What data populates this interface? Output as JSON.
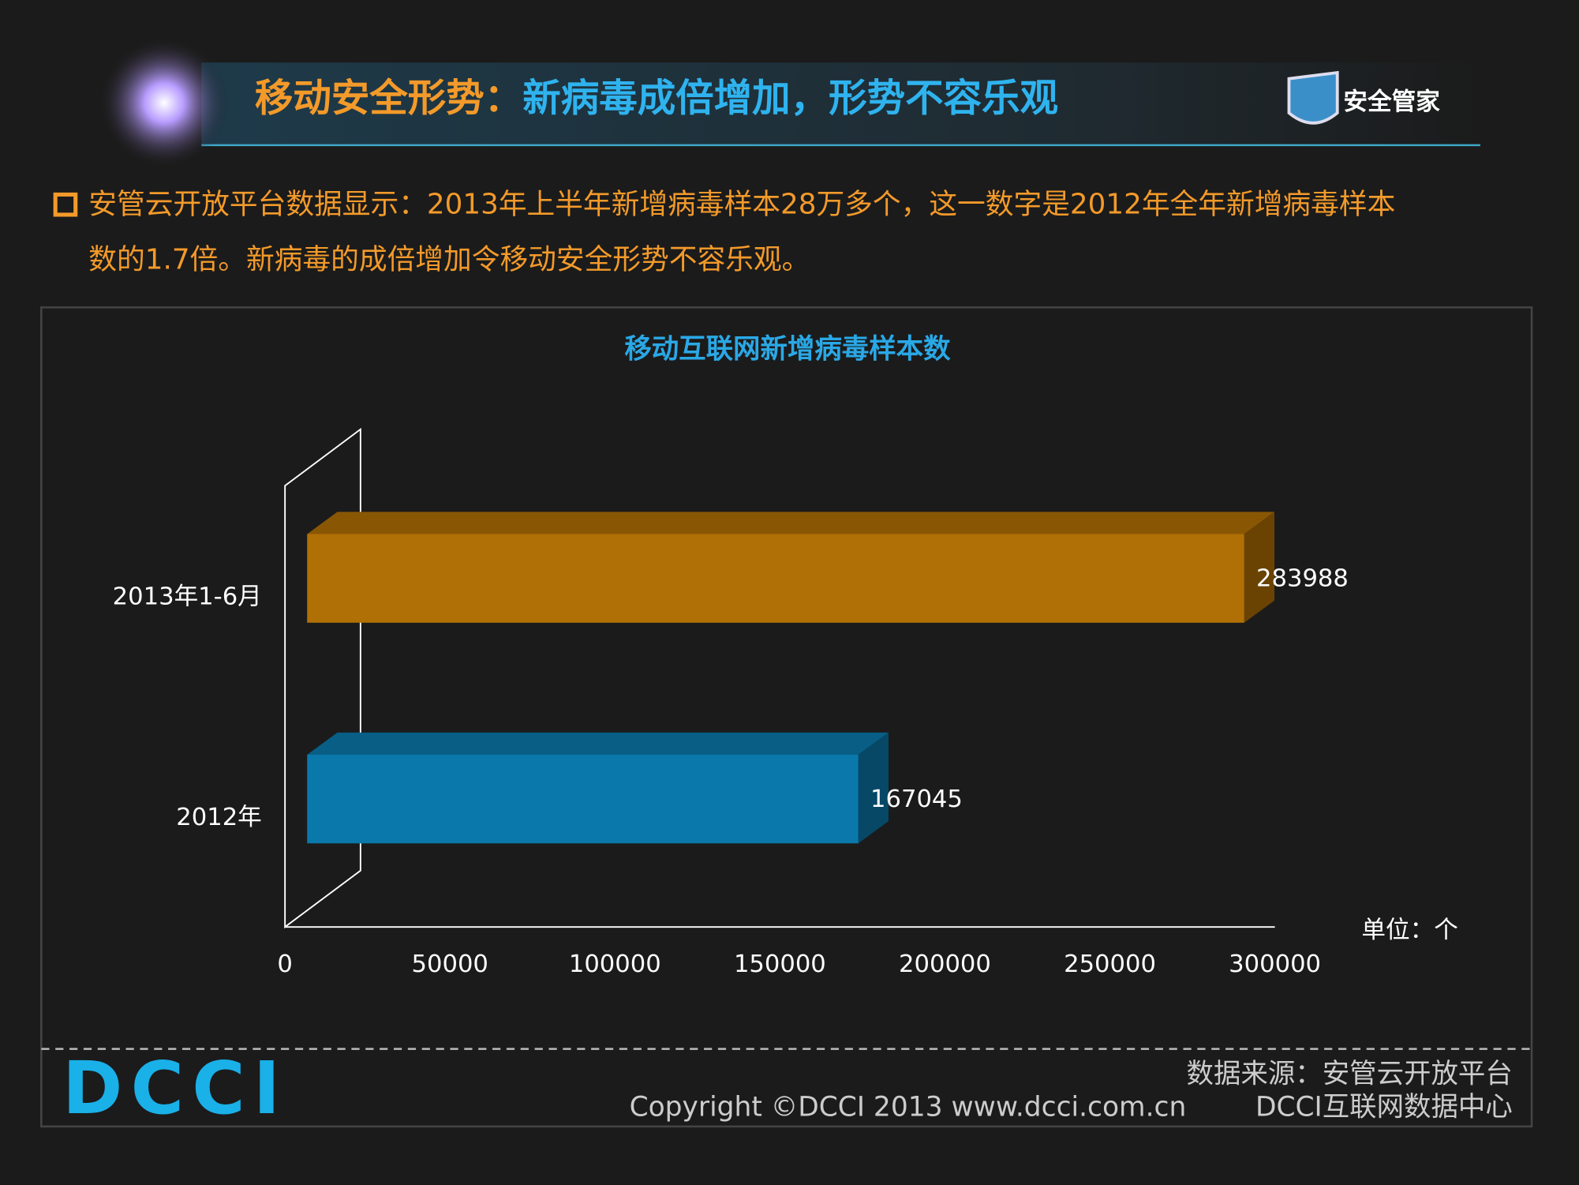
{
  "header": {
    "title_part1": "移动安全形势：",
    "title_part2": "新病毒成倍增加，形势不容乐观",
    "logo": "安全管家"
  },
  "bullet": {
    "line1": "安管云开放平台数据显示：2013年上半年新增病毒样本28万多个，这一数字是2012年全年新增病毒样本",
    "line2": "数的1.7倍。新病毒的成倍增加令移动安全形势不容乐观。"
  },
  "chart_data": {
    "type": "bar",
    "orientation": "horizontal",
    "title": "移动互联网新增病毒样本数",
    "categories": [
      "2013年1-6月",
      "2012年"
    ],
    "values": [
      283988,
      167045
    ],
    "colors": [
      "#b07005",
      "#0a78aa"
    ],
    "xlim": [
      0,
      300000
    ],
    "xticks": [
      0,
      50000,
      100000,
      150000,
      200000,
      250000,
      300000
    ],
    "unit": "单位：个"
  },
  "footer": {
    "source": "数据来源：安管云开放平台",
    "copyright": "Copyright ©DCCI 2013 www.dcci.com.cn",
    "org": "DCCI互联网数据中心",
    "logo": "DCCI"
  }
}
